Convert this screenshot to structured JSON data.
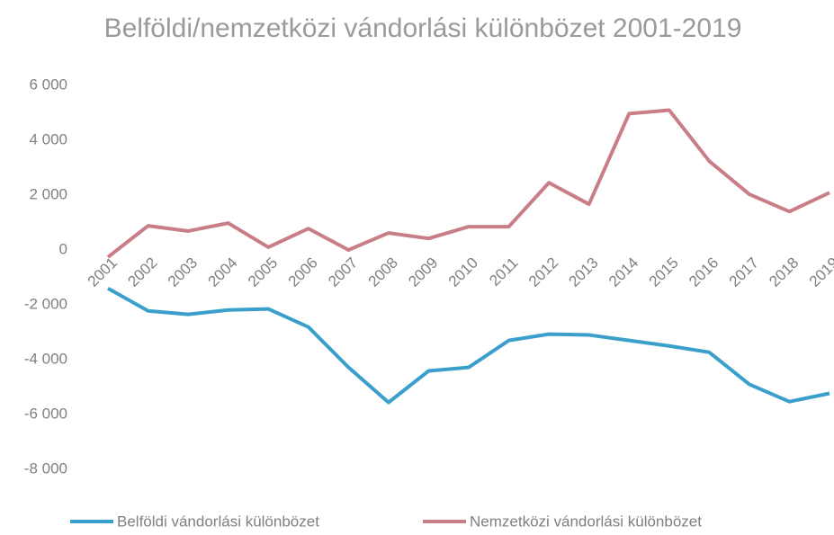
{
  "chart_data": {
    "type": "line",
    "title": "Belföldi/nemzetközi vándorlási különbözet 2001-2019",
    "categories": [
      "2001",
      "2002",
      "2003",
      "2004",
      "2005",
      "2006",
      "2007",
      "2008",
      "2009",
      "2010",
      "2011",
      "2012",
      "2013",
      "2014",
      "2015",
      "2016",
      "2017",
      "2018",
      "2019"
    ],
    "series": [
      {
        "name": "Belföldi vándorlási különbözet",
        "color": "#3b9fcc",
        "values": [
          -1400,
          -2220,
          -2350,
          -2190,
          -2150,
          -2810,
          -4280,
          -5560,
          -4410,
          -4280,
          -3300,
          -3070,
          -3100,
          -3300,
          -3500,
          -3730,
          -4900,
          -5530,
          -5230
        ]
      },
      {
        "name": "Nemzetközi vándorlási különbözet",
        "color": "#c97e87",
        "values": [
          -260,
          880,
          690,
          980,
          100,
          780,
          0,
          620,
          420,
          850,
          850,
          2450,
          1670,
          4970,
          5100,
          3240,
          2030,
          1400,
          2090
        ]
      }
    ],
    "ylim": [
      -8000,
      6000
    ],
    "yticks": [
      {
        "value": 6000,
        "label": "6 000"
      },
      {
        "value": 4000,
        "label": "4 000"
      },
      {
        "value": 2000,
        "label": "2 000"
      },
      0,
      {
        "value": -2000,
        "label": "-2 000"
      },
      {
        "value": -4000,
        "label": "-4 000"
      },
      {
        "value": -6000,
        "label": "-6 000"
      },
      {
        "value": -8000,
        "label": "-8 000"
      }
    ],
    "grid": false,
    "legend": "bottom"
  }
}
